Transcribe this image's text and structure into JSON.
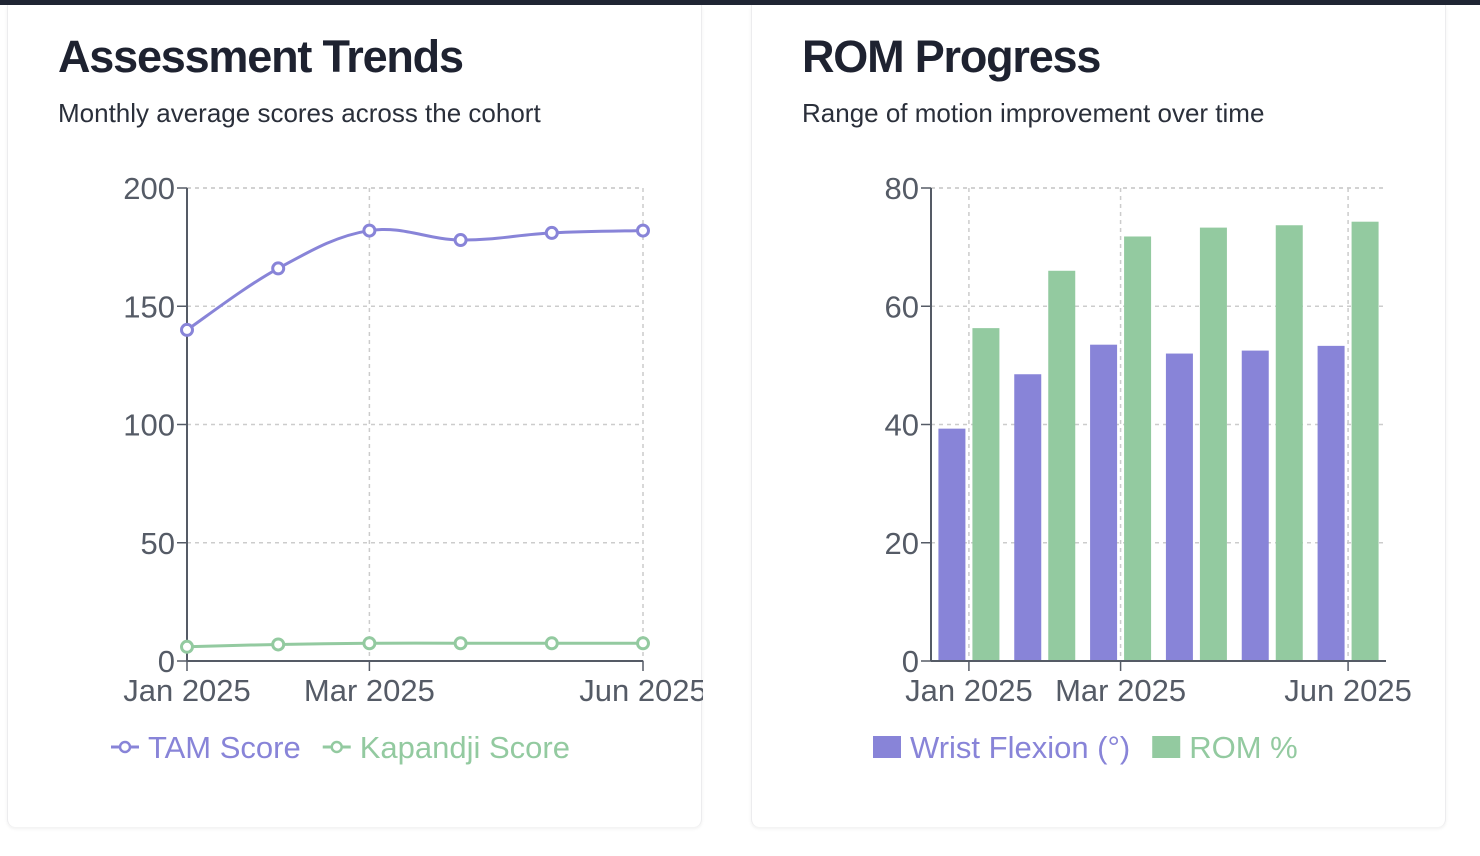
{
  "colors": {
    "purple": "#8884d8",
    "green": "#93caa0",
    "grid": "#cccccc",
    "axis": "#555b66"
  },
  "cards": [
    {
      "title": "Assessment Trends",
      "subtitle": "Monthly average scores across the cohort"
    },
    {
      "title": "ROM Progress",
      "subtitle": "Range of motion improvement over time"
    }
  ],
  "chart_data": [
    {
      "type": "line",
      "x": [
        "Jan 2025",
        "Feb 2025",
        "Mar 2025",
        "Apr 2025",
        "May 2025",
        "Jun 2025"
      ],
      "x_tick_labels": [
        "Jan 2025",
        "Mar 2025",
        "Jun 2025"
      ],
      "y_ticks": [
        0,
        50,
        100,
        150,
        200
      ],
      "ylim": [
        0,
        200
      ],
      "grid": true,
      "legend_position": "bottom",
      "series": [
        {
          "name": "TAM Score",
          "color": "#8884d8",
          "values": [
            140,
            166,
            182,
            178,
            181,
            182
          ]
        },
        {
          "name": "Kapandji Score",
          "color": "#93caa0",
          "values": [
            6,
            7,
            7.5,
            7.5,
            7.5,
            7.5
          ]
        }
      ]
    },
    {
      "type": "bar",
      "categories": [
        "Jan 2025",
        "Feb 2025",
        "Mar 2025",
        "Apr 2025",
        "May 2025",
        "Jun 2025"
      ],
      "x_tick_labels": [
        "Jan 2025",
        "Mar 2025",
        "Jun 2025"
      ],
      "y_ticks": [
        0,
        20,
        40,
        60,
        80
      ],
      "ylim": [
        0,
        80
      ],
      "grid": true,
      "legend_position": "bottom",
      "series": [
        {
          "name": "Wrist Flexion (°)",
          "color": "#8884d8",
          "values": [
            39.3,
            48.5,
            53.5,
            52,
            52.5,
            53.3
          ]
        },
        {
          "name": "ROM %",
          "color": "#93caa0",
          "values": [
            56.3,
            66,
            71.8,
            73.3,
            73.7,
            74.3
          ]
        }
      ]
    }
  ]
}
